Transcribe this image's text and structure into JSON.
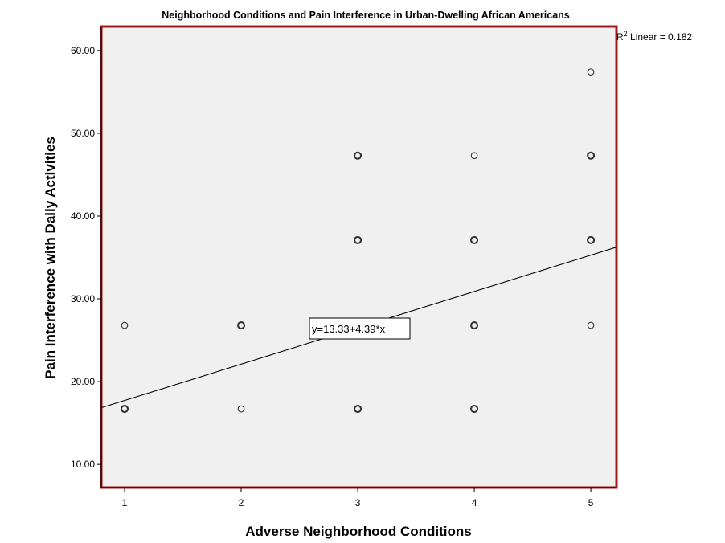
{
  "chart_data": {
    "type": "scatter",
    "title": "Neighborhood Conditions and Pain Interference in Urban-Dwelling African Americans",
    "xlabel": "Adverse Neighborhood Conditions",
    "ylabel": "Pain Interference with Daily Activities",
    "xlim": [
      0.8,
      5.22
    ],
    "ylim": [
      7.2,
      62.9
    ],
    "x_ticks": [
      "1",
      "2",
      "3",
      "4",
      "5"
    ],
    "y_ticks": [
      "10.00",
      "20.00",
      "30.00",
      "40.00",
      "50.00",
      "60.00"
    ],
    "grid": false,
    "points": [
      {
        "x": 1,
        "y": 26.8,
        "bold": false
      },
      {
        "x": 1,
        "y": 16.7,
        "bold": true
      },
      {
        "x": 2,
        "y": 26.8,
        "bold": true
      },
      {
        "x": 2,
        "y": 16.7,
        "bold": false
      },
      {
        "x": 3,
        "y": 47.3,
        "bold": true
      },
      {
        "x": 3,
        "y": 37.1,
        "bold": true
      },
      {
        "x": 3,
        "y": 16.7,
        "bold": true
      },
      {
        "x": 4,
        "y": 47.3,
        "bold": false
      },
      {
        "x": 4,
        "y": 37.1,
        "bold": true
      },
      {
        "x": 4,
        "y": 26.8,
        "bold": true
      },
      {
        "x": 4,
        "y": 16.7,
        "bold": true
      },
      {
        "x": 5,
        "y": 57.4,
        "bold": false
      },
      {
        "x": 5,
        "y": 47.3,
        "bold": true
      },
      {
        "x": 5,
        "y": 37.1,
        "bold": true
      },
      {
        "x": 5,
        "y": 26.8,
        "bold": false
      }
    ],
    "fit_line": {
      "intercept": 13.33,
      "slope": 4.39,
      "equation_label": "y=13.33+4.39*x",
      "r2_label_prefix": "R",
      "r2_label_sup": "2",
      "r2_label_rest": " Linear = 0.182"
    },
    "colors": {
      "plot_background": "#f0f0f0",
      "plot_border": "#a01c1c",
      "markers": "#333333",
      "fit_line": "#000000"
    }
  }
}
